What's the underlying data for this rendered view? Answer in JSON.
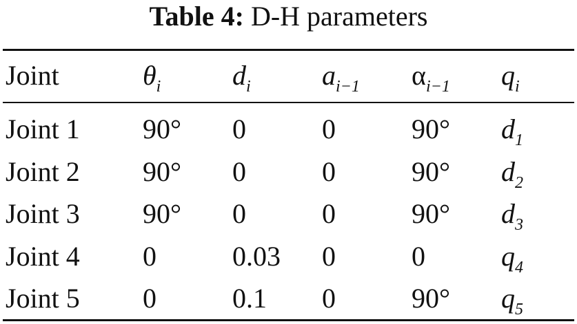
{
  "caption": {
    "label": "Table 4:",
    "text": "D-H parameters"
  },
  "table": {
    "header": [
      "Joint",
      {
        "base": "θ",
        "sub": "i"
      },
      {
        "base": "d",
        "sub": "i"
      },
      {
        "base": "a",
        "sub": "i−1"
      },
      {
        "base": "α",
        "sub": "i−1"
      },
      {
        "base": "q",
        "sub": "i"
      }
    ],
    "rows": [
      [
        "Joint 1",
        "90°",
        "0",
        "0",
        "90°",
        {
          "base": "d",
          "sub": "1"
        }
      ],
      [
        "Joint 2",
        "90°",
        "0",
        "0",
        "90°",
        {
          "base": "d",
          "sub": "2"
        }
      ],
      [
        "Joint 3",
        "90°",
        "0",
        "0",
        "90°",
        {
          "base": "d",
          "sub": "3"
        }
      ],
      [
        "Joint 4",
        "0",
        "0.03",
        "0",
        "0",
        {
          "base": "q",
          "sub": "4"
        }
      ],
      [
        "Joint 5",
        "0",
        "0.1",
        "0",
        "90°",
        {
          "base": "q",
          "sub": "5"
        }
      ]
    ]
  }
}
